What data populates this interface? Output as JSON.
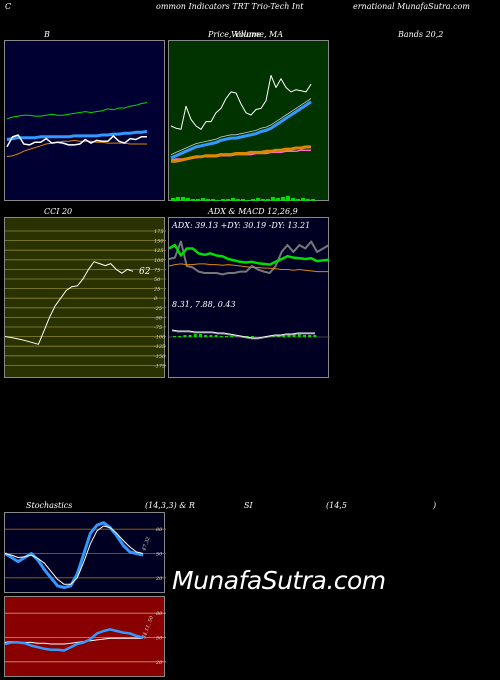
{
  "header": {
    "left": "C",
    "mid": "ommon  Indicators TRT Trio-Tech Int",
    "right": "ernational MunafaSutra.com"
  },
  "panels": {
    "bollinger": {
      "title": "B"
    },
    "price": {
      "title": "Price,  Volume, MA",
      "title_overlap": "Volume"
    },
    "bands": {
      "title": "Bands 20,2"
    },
    "cci": {
      "title": "CCI 20",
      "current": "62",
      "ticks": [
        "175",
        "150",
        "125",
        "100",
        "75",
        "50",
        "25",
        "0",
        "-25",
        "-50",
        "-75",
        "-100",
        "-125",
        "-150",
        "-175"
      ]
    },
    "adx": {
      "title": "ADX  & MACD 12,26,9",
      "readout": "ADX: 39.13  +DY: 30.19 -DY: 13.21",
      "macd_readout": "8.31,  7.88,  0.43"
    },
    "stoch": {
      "title": "Stochastics",
      "params": "(14,3,3) & R",
      "current": "47.32",
      "ticks": [
        "80",
        "50",
        "20"
      ]
    },
    "rsi": {
      "title": "SI",
      "params": "(14,5",
      "close": ")",
      "current": "34.11, 50",
      "ticks": [
        "80",
        "50",
        "20"
      ]
    }
  },
  "watermark": "MunafaSutra.com",
  "colors": {
    "bollinger_bg": "#000033",
    "price_bg": "#003300",
    "cci_bg": "#2a3300",
    "adx_bg": "#000022",
    "stoch_bg": "#000022",
    "rsi_bg": "#880000",
    "blue": "#3399ff",
    "green": "#00dd00",
    "orange": "#dd8800",
    "white": "#ffffff"
  },
  "chart_data": [
    {
      "type": "line",
      "name": "bollinger-bands",
      "series": [
        {
          "values": [
            58,
            60,
            61,
            62,
            62,
            61,
            61,
            62,
            63,
            62,
            62,
            63,
            64,
            65,
            66,
            65,
            66,
            67,
            69,
            68,
            70,
            70,
            72,
            73,
            75,
            76
          ]
        },
        {
          "values": [
            27,
            38,
            40,
            30,
            29,
            32,
            32,
            36,
            31,
            32,
            31,
            29,
            29,
            30,
            35,
            31,
            34,
            33,
            33,
            39,
            33,
            31,
            36,
            35,
            38,
            38
          ]
        },
        {
          "values": [
            35,
            36,
            37,
            37,
            37,
            37,
            38,
            38,
            38,
            38,
            38,
            38,
            39,
            39,
            39,
            39,
            39,
            40,
            40,
            41,
            41,
            42,
            42,
            43,
            43,
            44
          ]
        },
        {
          "values": [
            16,
            17,
            19,
            22,
            24,
            26,
            28,
            30,
            31,
            32,
            33,
            33,
            34,
            33,
            33,
            33,
            32,
            32,
            31,
            31,
            31,
            31,
            30,
            30,
            30,
            30
          ]
        }
      ]
    },
    {
      "type": "line",
      "name": "price-volume-ma",
      "series": [
        {
          "values": [
            50,
            48,
            47,
            68,
            56,
            50,
            47,
            54,
            54,
            62,
            66,
            75,
            81,
            80,
            70,
            62,
            60,
            65,
            66,
            73,
            96,
            85,
            93,
            85,
            81,
            83,
            82,
            81,
            88
          ]
        },
        {
          "values": [
            21,
            23,
            25,
            27,
            29,
            31,
            32,
            33,
            34,
            35,
            37,
            38,
            39,
            39,
            40,
            41,
            42,
            43,
            45,
            46,
            48,
            51,
            54,
            57,
            60,
            63,
            66,
            69,
            72
          ]
        },
        {
          "values": [
            18,
            18,
            19,
            20,
            21,
            22,
            22,
            23,
            23,
            23,
            24,
            24,
            24,
            25,
            25,
            25,
            26,
            26,
            26,
            27,
            27,
            28,
            28,
            29,
            29,
            30,
            30,
            31,
            31
          ]
        },
        {
          "values": [
            19,
            20,
            20,
            20,
            21,
            21,
            22,
            22,
            22,
            22,
            23,
            23,
            23,
            24,
            24,
            24,
            24,
            25,
            25,
            25,
            26,
            26,
            26,
            27,
            27,
            27,
            28,
            28,
            28
          ]
        }
      ]
    },
    {
      "type": "line",
      "name": "cci",
      "ylim": [
        -175,
        175
      ],
      "series": [
        {
          "values": [
            -100,
            -102,
            -105,
            -108,
            -112,
            -116,
            -120,
            -85,
            -50,
            -20,
            0,
            20,
            30,
            32,
            50,
            75,
            95,
            90,
            85,
            90,
            75,
            65,
            75,
            70
          ]
        }
      ]
    },
    {
      "type": "line",
      "name": "adx-macd",
      "series": [
        {
          "values": [
            85,
            90,
            75,
            85,
            85,
            78,
            76,
            78,
            75,
            74,
            70,
            68,
            66,
            65,
            66,
            64,
            63,
            62,
            66,
            70,
            74,
            72,
            71,
            70,
            71,
            67,
            68,
            69
          ]
        },
        {
          "values": [
            60,
            62,
            63,
            62,
            62,
            63,
            63,
            62,
            62,
            61,
            62,
            61,
            60,
            59,
            58,
            58,
            57,
            57,
            56,
            55,
            55,
            54,
            55,
            54,
            53,
            52,
            52,
            52
          ]
        },
        {
          "values": [
            70,
            72,
            95,
            60,
            58,
            52,
            50,
            50,
            50,
            48,
            50,
            50,
            52,
            52,
            60,
            55,
            52,
            50,
            60,
            80,
            90,
            80,
            90,
            85,
            95,
            80,
            85,
            90
          ]
        }
      ]
    },
    {
      "type": "line",
      "name": "stochastics",
      "ylim": [
        0,
        100
      ],
      "series": [
        {
          "values": [
            50,
            45,
            40,
            45,
            50,
            42,
            30,
            20,
            10,
            8,
            10,
            25,
            50,
            75,
            85,
            88,
            82,
            72,
            60,
            52,
            50,
            48
          ]
        },
        {
          "values": [
            50,
            48,
            45,
            46,
            48,
            44,
            38,
            28,
            18,
            12,
            12,
            20,
            40,
            62,
            78,
            84,
            82,
            75,
            66,
            58,
            52,
            50
          ]
        }
      ]
    },
    {
      "type": "line",
      "name": "rsi",
      "ylim": [
        0,
        100
      ],
      "series": [
        {
          "values": [
            42,
            44,
            44,
            43,
            40,
            38,
            36,
            35,
            35,
            34,
            38,
            42,
            44,
            48,
            55,
            58,
            60,
            58,
            56,
            55,
            52,
            50
          ]
        },
        {
          "values": [
            44,
            45,
            44,
            44,
            44,
            43,
            43,
            42,
            42,
            42,
            43,
            44,
            45,
            46,
            47,
            48,
            49,
            49,
            49,
            49,
            49,
            49
          ]
        }
      ]
    }
  ]
}
